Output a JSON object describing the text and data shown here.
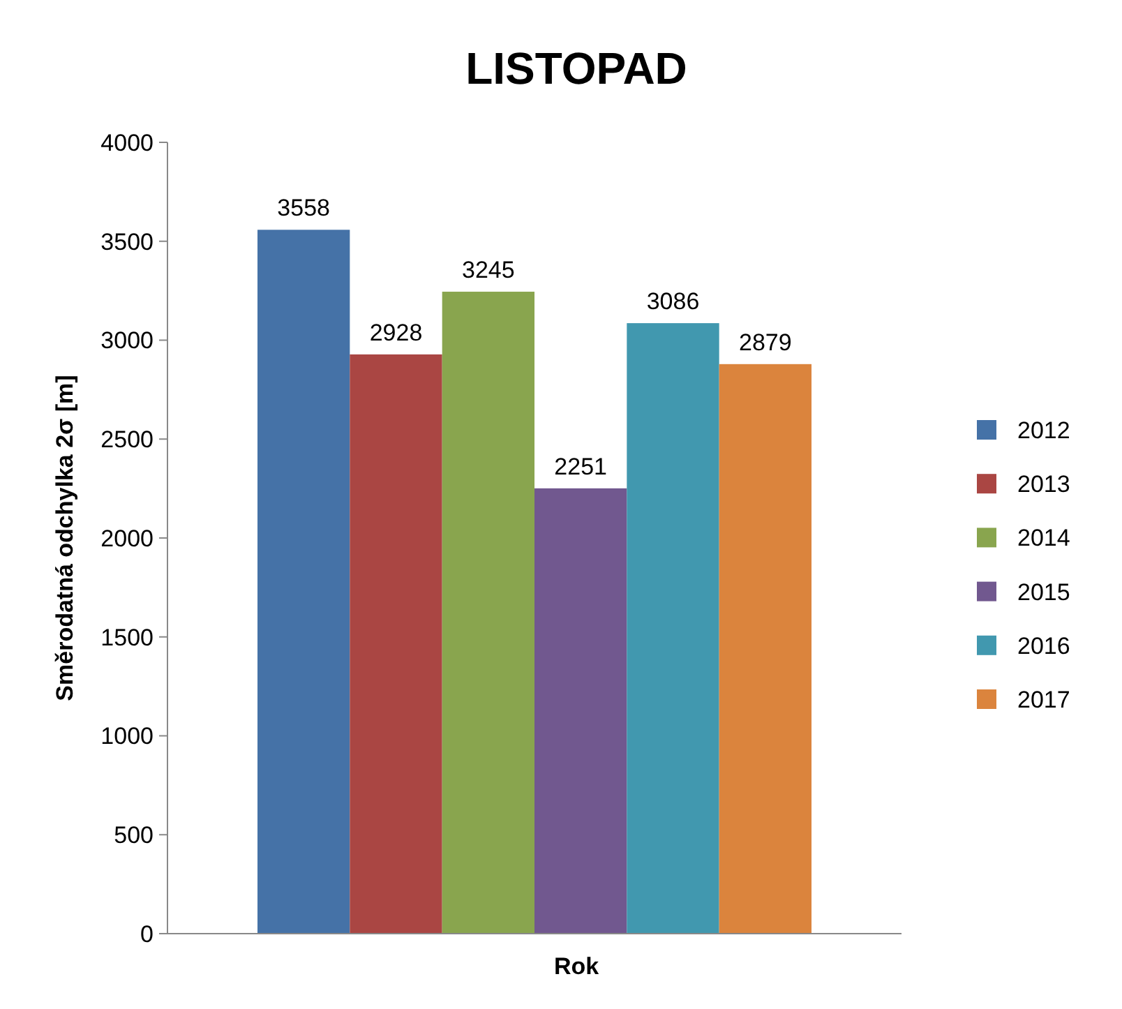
{
  "chart_data": {
    "type": "bar",
    "title": "LISTOPAD",
    "xlabel": "Rok",
    "ylabel": "Směrodatná odchylka 2σ [m]",
    "categories": [
      null
    ],
    "series": [
      {
        "name": "2012",
        "color": "#4572a7",
        "values": [
          3558
        ]
      },
      {
        "name": "2013",
        "color": "#aa4643",
        "values": [
          2928
        ]
      },
      {
        "name": "2014",
        "color": "#89a54e",
        "values": [
          3245
        ]
      },
      {
        "name": "2015",
        "color": "#71588f",
        "values": [
          2251
        ]
      },
      {
        "name": "2016",
        "color": "#4198af",
        "values": [
          3086
        ]
      },
      {
        "name": "2017",
        "color": "#db843d",
        "values": [
          2879
        ]
      }
    ],
    "ylim": [
      0,
      4000
    ],
    "yticks": [
      0,
      500,
      1000,
      1500,
      2000,
      2500,
      3000,
      3500,
      4000
    ],
    "grid": false,
    "legend": "right",
    "data_labels": true
  }
}
